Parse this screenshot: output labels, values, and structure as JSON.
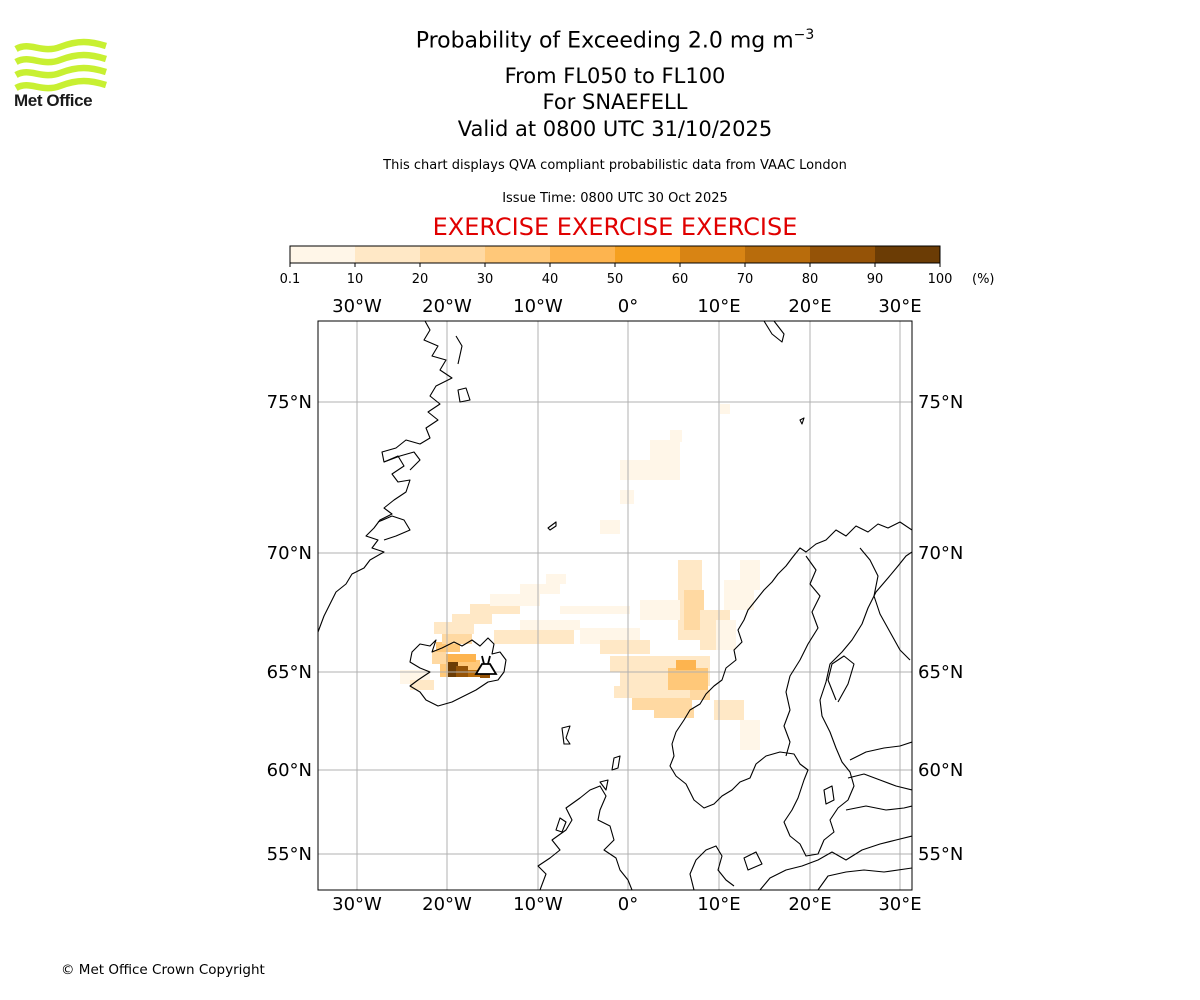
{
  "header": {
    "logo_text": "Met Office",
    "title_main": "Probability of Exceeding 2.0 mg m",
    "title_exponent": "−3",
    "title_levels": "From FL050 to FL100",
    "title_volcano": "For SNAEFELL",
    "title_valid": "Valid at 0800 UTC 31/10/2025",
    "note": "This chart displays QVA compliant probabilistic data from VAAC London",
    "issue_time": "Issue Time: 0800 UTC 30 Oct 2025",
    "exercise_banner": "EXERCISE EXERCISE EXERCISE",
    "logo_color": "#c8f032",
    "banner_color": "#e00000"
  },
  "legend": {
    "unit": "(%)",
    "ticks": [
      "0.1",
      "10",
      "20",
      "30",
      "40",
      "50",
      "60",
      "70",
      "80",
      "90",
      "100"
    ],
    "colors": [
      "#fff6e8",
      "#ffe8c6",
      "#ffd9a2",
      "#ffc879",
      "#fdb44f",
      "#f5a020",
      "#d88414",
      "#b86c0c",
      "#955307",
      "#6b3c05"
    ]
  },
  "map": {
    "lon_labels": [
      "30°W",
      "20°W",
      "10°W",
      "0°",
      "10°E",
      "20°E",
      "30°E"
    ],
    "lat_labels": [
      "75°N",
      "70°N",
      "65°N",
      "60°N",
      "55°N"
    ],
    "grid": true,
    "source_marker": "volcano"
  },
  "footer": {
    "copyright": "© Met Office Crown Copyright"
  }
}
